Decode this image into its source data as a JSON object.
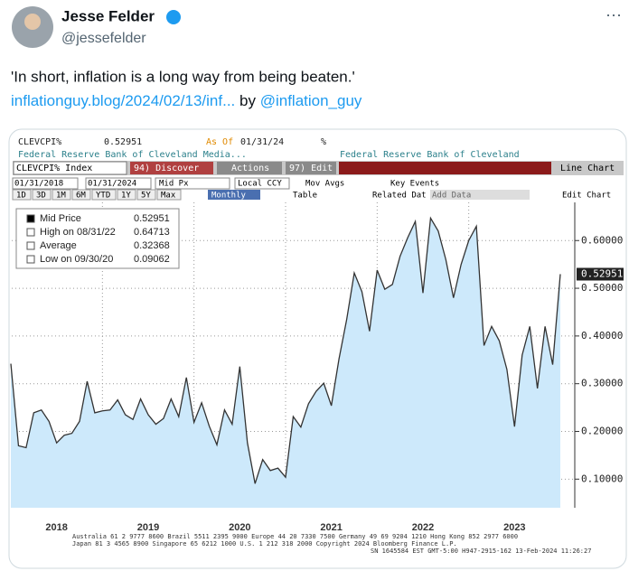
{
  "tweet": {
    "author": "Jesse Felder",
    "handle": "@jessefelder",
    "text": "'In short, inflation is a long way from being beaten.'",
    "link": "inflationguy.blog/2024/02/13/inf...",
    "by": "by",
    "mention": "@inflation_guy"
  },
  "terminal": {
    "ticker": "CLEVCPI%",
    "price": "0.52951",
    "as_of": "As Of",
    "as_of_date": "01/31/24",
    "unit": "%",
    "source_left": "Federal Reserve Bank of Cleveland Media...",
    "source_right": "Federal Reserve Bank of Cleveland",
    "security": "CLEVCPI% Index",
    "discover": "94) Discover",
    "actions": "Actions",
    "edit": "97) Edit",
    "chart_kind": "Line Chart",
    "start_date": "01/31/2018",
    "end_date": "01/31/2024",
    "field": "Mid Px",
    "currency": "Local CCY",
    "mov_avgs": "Mov Avgs",
    "key_events": "Key Events",
    "periods": [
      "1D",
      "3D",
      "1M",
      "6M",
      "YTD",
      "1Y",
      "5Y",
      "Max"
    ],
    "frequency": "Monthly",
    "table": "Table",
    "related": "Related Dat",
    "add_data": "Add Data",
    "edit_chart": "Edit Chart",
    "footer": [
      "Australia 61 2 9777 8600 Brazil 5511 2395 9000 Europe 44 20 7330 7500 Germany 49 69 9204 1210 Hong Kong 852 2977 6000",
      "Japan 81 3 4565 8900          Singapore 65 6212 1000          U.S. 1 212 318 2000          Copyright 2024 Bloomberg Finance L.P.",
      "SN 1645584 EST  GMT-5:00 H947-2915-162 13-Feb-2024 11:26:27"
    ]
  },
  "chart_data": {
    "type": "area",
    "color": "#333333",
    "fill": "#cde9fb",
    "grid": true,
    "categories": [
      null,
      null,
      null,
      null,
      null,
      null,
      "2018",
      null,
      null,
      null,
      null,
      null,
      null,
      null,
      null,
      null,
      null,
      null,
      "2019",
      null,
      null,
      null,
      null,
      null,
      null,
      null,
      null,
      null,
      null,
      null,
      "2020",
      null,
      null,
      null,
      null,
      null,
      null,
      null,
      null,
      null,
      null,
      null,
      "2021",
      null,
      null,
      null,
      null,
      null,
      null,
      null,
      null,
      null,
      null,
      null,
      "2022",
      null,
      null,
      null,
      null,
      null,
      null,
      null,
      null,
      null,
      null,
      null,
      "2023",
      null,
      null,
      null,
      null,
      null,
      null
    ],
    "values": [
      0.342,
      0.17,
      0.166,
      0.239,
      0.245,
      0.221,
      0.176,
      0.192,
      0.196,
      0.221,
      0.305,
      0.239,
      0.243,
      0.245,
      0.266,
      0.235,
      0.225,
      0.268,
      0.235,
      0.215,
      0.227,
      0.268,
      0.231,
      0.313,
      0.219,
      0.26,
      0.211,
      0.172,
      0.245,
      0.215,
      0.336,
      0.176,
      0.09062,
      0.141,
      0.118,
      0.123,
      0.104,
      0.231,
      0.209,
      0.258,
      0.284,
      0.301,
      0.254,
      0.352,
      0.434,
      0.532,
      0.493,
      0.41,
      0.538,
      0.498,
      0.508,
      0.567,
      0.606,
      0.64,
      0.49,
      0.64713,
      0.62,
      0.56,
      0.48,
      0.55,
      0.6,
      0.63,
      0.38,
      0.42,
      0.39,
      0.33,
      0.21,
      0.36,
      0.42,
      0.29,
      0.42,
      0.34,
      0.52951
    ],
    "ylim": [
      0.04,
      0.68
    ],
    "yticks": [
      {
        "value": 0.1,
        "label": "0.10000"
      },
      {
        "value": 0.2,
        "label": "0.20000"
      },
      {
        "value": 0.3,
        "label": "0.30000"
      },
      {
        "value": 0.4,
        "label": "0.40000"
      },
      {
        "value": 0.5,
        "label": "0.50000"
      },
      {
        "value": 0.6,
        "label": "0.60000"
      }
    ],
    "legend": [
      {
        "name": "Mid Price",
        "value": 0.52951
      },
      {
        "name": "High on 08/31/22",
        "value": 0.64713
      },
      {
        "name": "Average",
        "value": 0.32368
      },
      {
        "name": "Low on 09/30/20",
        "value": 0.09062
      }
    ]
  }
}
